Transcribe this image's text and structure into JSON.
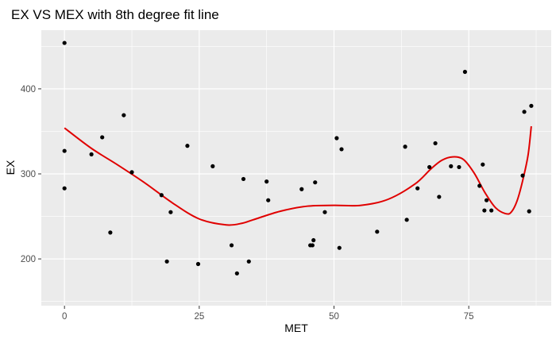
{
  "chart_data": {
    "type": "scatter",
    "title": "EX VS MEX with 8th degree fit line",
    "xlabel": "MET",
    "ylabel": "EX",
    "xlim": [
      -4.3,
      90.3
    ],
    "ylim": [
      145,
      469
    ],
    "xticks": [
      0,
      25,
      50,
      75
    ],
    "yticks": [
      200,
      300,
      400
    ],
    "xtick_labels": [
      "0",
      "25",
      "50",
      "75"
    ],
    "ytick_labels": [
      "200",
      "300",
      "400"
    ],
    "grid": true,
    "legend": "none",
    "colors": {
      "panel": "#ebebeb",
      "grid": "#ffffff",
      "points": "#000000",
      "fit_line": "#e00000"
    },
    "points": [
      {
        "x": 0,
        "y": 454
      },
      {
        "x": 0,
        "y": 327
      },
      {
        "x": 0,
        "y": 283
      },
      {
        "x": 5,
        "y": 323
      },
      {
        "x": 7,
        "y": 343
      },
      {
        "x": 8.5,
        "y": 231
      },
      {
        "x": 11,
        "y": 369
      },
      {
        "x": 12.5,
        "y": 302
      },
      {
        "x": 18,
        "y": 275
      },
      {
        "x": 19,
        "y": 197
      },
      {
        "x": 19.7,
        "y": 255
      },
      {
        "x": 22.8,
        "y": 333
      },
      {
        "x": 24.8,
        "y": 194
      },
      {
        "x": 27.5,
        "y": 309
      },
      {
        "x": 31,
        "y": 216
      },
      {
        "x": 32,
        "y": 183
      },
      {
        "x": 33.2,
        "y": 294
      },
      {
        "x": 34.2,
        "y": 197
      },
      {
        "x": 37.5,
        "y": 291
      },
      {
        "x": 37.8,
        "y": 269
      },
      {
        "x": 44,
        "y": 282
      },
      {
        "x": 45.6,
        "y": 216
      },
      {
        "x": 46,
        "y": 216
      },
      {
        "x": 46.2,
        "y": 222
      },
      {
        "x": 46.5,
        "y": 290
      },
      {
        "x": 48.3,
        "y": 255
      },
      {
        "x": 50.5,
        "y": 342
      },
      {
        "x": 51,
        "y": 213
      },
      {
        "x": 51.4,
        "y": 329
      },
      {
        "x": 58,
        "y": 232
      },
      {
        "x": 63.2,
        "y": 332
      },
      {
        "x": 63.5,
        "y": 246
      },
      {
        "x": 65.5,
        "y": 283
      },
      {
        "x": 67.7,
        "y": 308
      },
      {
        "x": 68.8,
        "y": 336
      },
      {
        "x": 69.5,
        "y": 273
      },
      {
        "x": 71.7,
        "y": 309
      },
      {
        "x": 73.2,
        "y": 308
      },
      {
        "x": 74.3,
        "y": 420
      },
      {
        "x": 77,
        "y": 286
      },
      {
        "x": 77.6,
        "y": 311
      },
      {
        "x": 77.9,
        "y": 257
      },
      {
        "x": 78.3,
        "y": 269
      },
      {
        "x": 79.2,
        "y": 257
      },
      {
        "x": 85,
        "y": 298
      },
      {
        "x": 85.3,
        "y": 373
      },
      {
        "x": 86.2,
        "y": 256
      },
      {
        "x": 86.6,
        "y": 380
      }
    ],
    "fit_line": [
      {
        "x": 0,
        "y": 354
      },
      {
        "x": 5,
        "y": 330
      },
      {
        "x": 10,
        "y": 310
      },
      {
        "x": 15,
        "y": 289
      },
      {
        "x": 20,
        "y": 266
      },
      {
        "x": 25,
        "y": 247
      },
      {
        "x": 30,
        "y": 240
      },
      {
        "x": 33,
        "y": 242
      },
      {
        "x": 35,
        "y": 246
      },
      {
        "x": 40,
        "y": 256
      },
      {
        "x": 45,
        "y": 262
      },
      {
        "x": 50,
        "y": 263
      },
      {
        "x": 55,
        "y": 263
      },
      {
        "x": 60,
        "y": 270
      },
      {
        "x": 65,
        "y": 288
      },
      {
        "x": 68,
        "y": 306
      },
      {
        "x": 70,
        "y": 316
      },
      {
        "x": 72,
        "y": 320
      },
      {
        "x": 74,
        "y": 317
      },
      {
        "x": 76,
        "y": 301
      },
      {
        "x": 78,
        "y": 278
      },
      {
        "x": 80,
        "y": 260
      },
      {
        "x": 82,
        "y": 253
      },
      {
        "x": 83,
        "y": 256
      },
      {
        "x": 84,
        "y": 269
      },
      {
        "x": 85,
        "y": 292
      },
      {
        "x": 86,
        "y": 322
      },
      {
        "x": 86.6,
        "y": 356
      }
    ]
  }
}
